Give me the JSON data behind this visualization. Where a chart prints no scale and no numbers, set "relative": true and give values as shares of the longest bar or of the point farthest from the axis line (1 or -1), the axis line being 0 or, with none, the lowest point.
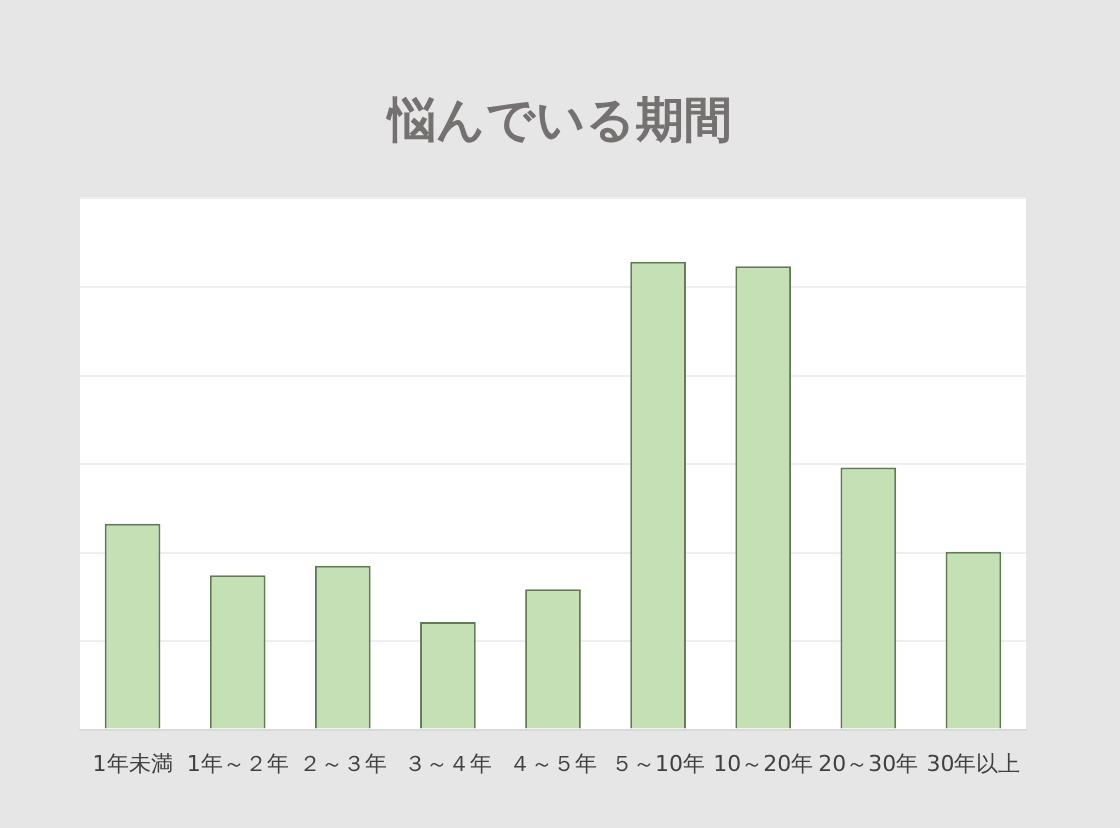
{
  "chart_data": {
    "type": "bar",
    "title": "悩んでいる期間",
    "categories": [
      "1年未満",
      "1年～２年",
      "２～３年",
      "３～４年",
      "４～５年",
      "５～10年",
      "10～20年",
      "20～30年",
      "30年以上"
    ],
    "values": [
      0.44,
      0.33,
      0.35,
      0.23,
      0.3,
      1,
      0.99,
      0.56,
      0.38
    ],
    "color": "#c5e0b4",
    "relative": true,
    "grid": "y",
    "legend": false
  }
}
